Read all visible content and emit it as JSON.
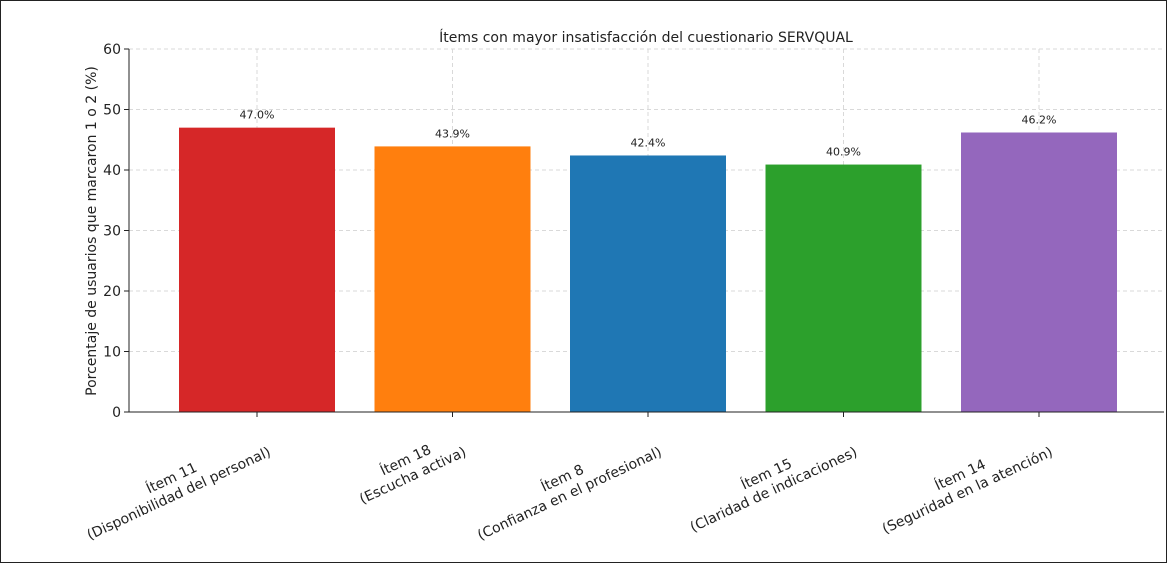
{
  "chart_data": {
    "type": "bar",
    "title": "Ítems con mayor insatisfacción del cuestionario SERVQUAL",
    "xlabel": "",
    "ylabel": "Porcentaje de usuarios que marcaron 1 o 2 (%)",
    "ylim": [
      0,
      60
    ],
    "yticks": [
      0,
      10,
      20,
      30,
      40,
      50,
      60
    ],
    "grid": true,
    "categories": [
      {
        "line1": "Ítem 11",
        "line2": "(Disponibilidad del personal)"
      },
      {
        "line1": "Ítem 18",
        "line2": "(Escucha activa)"
      },
      {
        "line1": "Ítem 8",
        "line2": "(Confianza en el profesional)"
      },
      {
        "line1": "Ítem 15",
        "line2": "(Claridad de indicaciones)"
      },
      {
        "line1": "Ítem 14",
        "line2": "(Seguridad en la atención)"
      }
    ],
    "values": [
      47.0,
      43.9,
      42.4,
      40.9,
      46.2
    ],
    "data_labels": [
      "47.0%",
      "43.9%",
      "42.4%",
      "40.9%",
      "46.2%"
    ],
    "colors": [
      "#d62728",
      "#ff7f0e",
      "#1f77b4",
      "#2ca02c",
      "#9467bd"
    ]
  }
}
